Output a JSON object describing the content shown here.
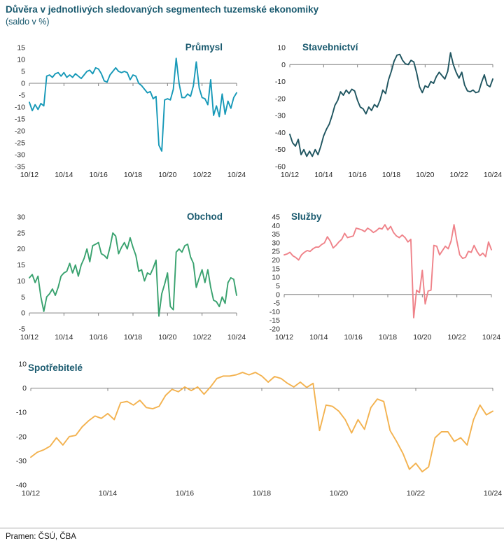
{
  "header": {
    "title": "Důvěra v jednotlivých sledovaných segmentech tuzemské ekonomiky",
    "subtitle": "(saldo v %)"
  },
  "footer": {
    "source": "Pramen: ČSÚ, ČBA"
  },
  "colors": {
    "heading": "#1A5A6F",
    "axis_line": "#808080",
    "tick_text": "#262626",
    "divider": "#A6A6A6"
  },
  "chart_data": [
    {
      "id": "prumysl",
      "type": "line",
      "title": "Průmysl",
      "color": "#1799B8",
      "ylim": [
        -35,
        15
      ],
      "ytick_step": 5,
      "x_start": "10/12",
      "x_step_months": 2,
      "x_tick_labels": [
        "10/12",
        "10/14",
        "10/16",
        "10/18",
        "10/20",
        "10/22",
        "10/24"
      ],
      "values": [
        -8,
        -11.5,
        -9,
        -11,
        -8.5,
        -9.5,
        3,
        3.5,
        2.5,
        4,
        4.5,
        3,
        4.5,
        2.5,
        3.5,
        2.5,
        4,
        3,
        2,
        3.5,
        5,
        5.5,
        4,
        6.5,
        6,
        4,
        1,
        0.5,
        3.5,
        5,
        6.5,
        5,
        4.5,
        5,
        4.5,
        1.5,
        3.5,
        3,
        0,
        -1,
        -2.5,
        -4,
        -3.5,
        -6.5,
        -5.5,
        -26,
        -28.5,
        -7,
        -6.5,
        -7,
        -2.5,
        10.5,
        0,
        -6,
        -6,
        -4.5,
        -5.5,
        -1,
        9,
        -2,
        -6,
        -6.5,
        -9,
        1.5,
        -13.5,
        -9.5,
        -14,
        -4.5,
        -13,
        -7.5,
        -10.5,
        -6,
        -4
      ]
    },
    {
      "id": "stavebnictvi",
      "type": "line",
      "title": "Stavebnictví",
      "color": "#1F5560",
      "ylim": [
        -60,
        10
      ],
      "ytick_step": 10,
      "x_start": "10/12",
      "x_step_months": 2,
      "x_tick_labels": [
        "10/12",
        "10/14",
        "10/16",
        "10/18",
        "10/20",
        "10/22",
        "10/24"
      ],
      "values": [
        -41,
        -46,
        -48,
        -44,
        -53,
        -50,
        -54,
        -51,
        -54,
        -50,
        -53,
        -48,
        -42,
        -38,
        -35,
        -30,
        -24,
        -21,
        -16,
        -18,
        -15,
        -17,
        -14.5,
        -15.5,
        -21,
        -25,
        -26,
        -29,
        -25,
        -27,
        -23.5,
        -25,
        -21,
        -15,
        -17,
        -9,
        -4,
        2,
        5.5,
        6,
        2.5,
        0.5,
        0,
        2.5,
        1.5,
        -5,
        -13,
        -16.5,
        -12.5,
        -13.5,
        -10,
        -11,
        -7,
        -4.5,
        -6.5,
        -8.5,
        -4,
        7,
        0,
        -4.5,
        -8,
        -4.5,
        -12,
        -15.5,
        -16,
        -15,
        -16.5,
        -16,
        -10.5,
        -6,
        -12,
        -13,
        -8.5
      ]
    },
    {
      "id": "obchod",
      "type": "line",
      "title": "Obchod",
      "color": "#39A26F",
      "ylim": [
        -5,
        30
      ],
      "ytick_step": 5,
      "x_start": "10/12",
      "x_step_months": 2,
      "x_tick_labels": [
        "10/12",
        "10/14",
        "10/16",
        "10/18",
        "10/20",
        "10/22",
        "10/24"
      ],
      "values": [
        11,
        12,
        9.5,
        11.5,
        5,
        0.5,
        5,
        6,
        7.5,
        5.5,
        8,
        11.5,
        12.5,
        13,
        15.5,
        12.5,
        15,
        11.5,
        15,
        17,
        20,
        16,
        21,
        21.5,
        22,
        18.5,
        18,
        17,
        20.5,
        25,
        24,
        18.5,
        20.5,
        22,
        20,
        23.5,
        20.5,
        18,
        13,
        13.5,
        10,
        12.5,
        12,
        14,
        16.5,
        -1,
        6,
        9,
        12.5,
        2,
        1,
        19,
        20,
        19,
        21,
        21.5,
        17.5,
        15.5,
        8,
        11,
        13.5,
        9.5,
        13.5,
        8,
        4,
        3.5,
        2,
        5,
        3,
        9.5,
        11,
        10.5,
        5.5
      ]
    },
    {
      "id": "sluzby",
      "type": "line",
      "title": "Služby",
      "color": "#EF8289",
      "ylim": [
        -20,
        45
      ],
      "ytick_step": 5,
      "x_start": "10/12",
      "x_step_months": 2,
      "x_tick_labels": [
        "10/12",
        "10/14",
        "10/16",
        "10/18",
        "10/20",
        "10/22",
        "10/24"
      ],
      "values": [
        23,
        23.5,
        24.5,
        22.5,
        21.5,
        20,
        23,
        24.5,
        25.5,
        25,
        26.5,
        27.5,
        27.5,
        29,
        30,
        33.5,
        31,
        27,
        28.5,
        30.5,
        32,
        35.5,
        33,
        33.5,
        34,
        38.5,
        38,
        37.5,
        36.5,
        38.5,
        37.5,
        36,
        37,
        38.5,
        38,
        40.5,
        37.5,
        39.5,
        36,
        34,
        33,
        34.5,
        33,
        30.5,
        32,
        -13.5,
        2.5,
        1,
        14,
        -5.5,
        2,
        2.5,
        28.5,
        28,
        23,
        25.5,
        28,
        26.5,
        31,
        40.5,
        31,
        23,
        21,
        21.5,
        25,
        24.5,
        28.5,
        25,
        22.5,
        24,
        22,
        30.5,
        26
      ]
    },
    {
      "id": "spotrebitele",
      "type": "line",
      "title": "Spotřebitelé",
      "color": "#F3B24F",
      "ylim": [
        -40,
        10
      ],
      "ytick_step": 10,
      "x_start": "10/12",
      "x_step_months": 2,
      "x_tick_labels": [
        "10/12",
        "10/14",
        "10/16",
        "10/18",
        "10/20",
        "10/22",
        "10/24"
      ],
      "values": [
        -28.5,
        -26.5,
        -25.5,
        -24,
        -20.5,
        -23.5,
        -20,
        -19.5,
        -16,
        -13.5,
        -11.5,
        -12.5,
        -10.5,
        -13,
        -6,
        -5.5,
        -7,
        -5,
        -8,
        -8.5,
        -7.5,
        -3,
        -0.5,
        -1.5,
        0.5,
        -1,
        0.5,
        -2.5,
        0.5,
        4,
        5,
        5,
        5.5,
        6.5,
        5.5,
        6.5,
        5,
        2.5,
        4.8,
        4,
        2,
        0.5,
        2.5,
        0.3,
        2,
        -17.5,
        -7,
        -7.5,
        -9.5,
        -13,
        -18.5,
        -13,
        -17,
        -8,
        -4.5,
        -5.5,
        -17.5,
        -22,
        -27,
        -33.5,
        -31,
        -34.5,
        -32.5,
        -20.5,
        -18,
        -18,
        -22,
        -20.5,
        -23.5,
        -13,
        -7,
        -11,
        -9.5
      ]
    }
  ]
}
